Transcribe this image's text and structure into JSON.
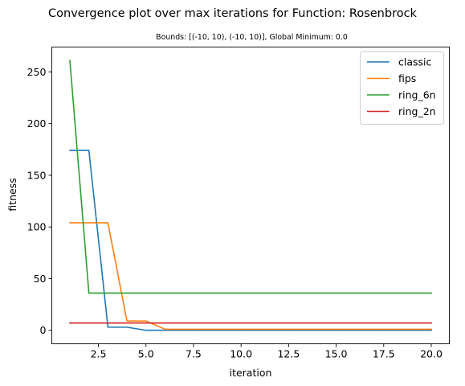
{
  "chart_data": {
    "type": "line",
    "title": "Convergence plot over max iterations for Function: Rosenbrock",
    "subtitle": "Bounds: [(-10, 10), (-10, 10)], Global Minimum: 0.0",
    "xlabel": "iteration",
    "ylabel": "fitness",
    "xlim": [
      0.05,
      20.95
    ],
    "ylim": [
      -13.05,
      274.05
    ],
    "xticks": [
      2.5,
      5.0,
      7.5,
      10.0,
      12.5,
      15.0,
      17.5,
      20.0
    ],
    "xtick_labels": [
      "2.5",
      "5.0",
      "7.5",
      "10.0",
      "12.5",
      "15.0",
      "17.5",
      "20.0"
    ],
    "yticks": [
      0,
      50,
      100,
      150,
      200,
      250
    ],
    "ytick_labels": [
      "0",
      "50",
      "100",
      "150",
      "200",
      "250"
    ],
    "grid": false,
    "legend_position": "top-right",
    "x": [
      1,
      2,
      3,
      4,
      5,
      6,
      7,
      8,
      9,
      10,
      11,
      12,
      13,
      14,
      15,
      16,
      17,
      18,
      19,
      20
    ],
    "series": [
      {
        "name": "classic",
        "color": "#1f77b4",
        "values": [
          174,
          174,
          3,
          3,
          0,
          0,
          0,
          0,
          0,
          0,
          0,
          0,
          0,
          0,
          0,
          0,
          0,
          0,
          0,
          0
        ]
      },
      {
        "name": "fips",
        "color": "#ff7f0e",
        "values": [
          104,
          104,
          104,
          9,
          9,
          1,
          1,
          1,
          1,
          1,
          1,
          1,
          1,
          1,
          1,
          1,
          1,
          1,
          1,
          1
        ]
      },
      {
        "name": "ring_6n",
        "color": "#2ca02c",
        "values": [
          261,
          36,
          36,
          36,
          36,
          36,
          36,
          36,
          36,
          36,
          36,
          36,
          36,
          36,
          36,
          36,
          36,
          36,
          36,
          36
        ]
      },
      {
        "name": "ring_2n",
        "color": "#d62728",
        "values": [
          7,
          7,
          7,
          7,
          7,
          7,
          7,
          7,
          7,
          7,
          7,
          7,
          7,
          7,
          7,
          7,
          7,
          7,
          7,
          7
        ]
      }
    ]
  }
}
